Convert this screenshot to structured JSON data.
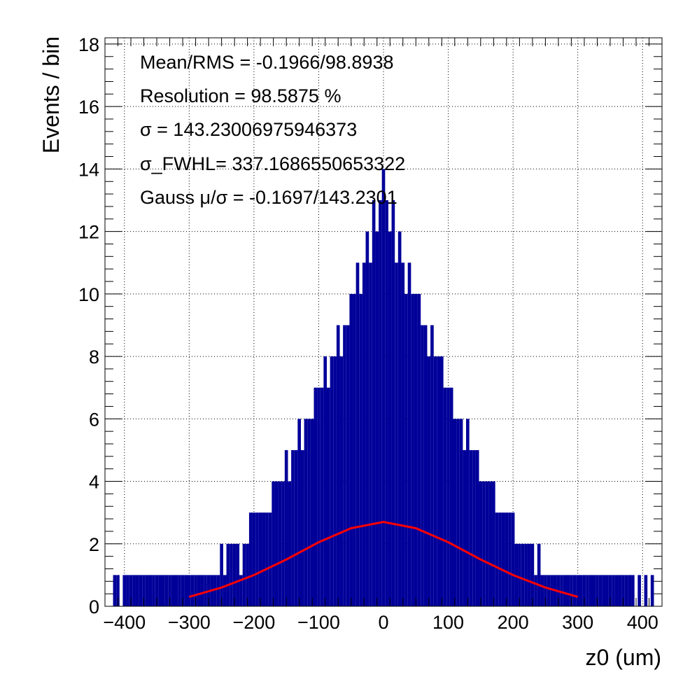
{
  "chart_data": {
    "type": "bar",
    "title": "",
    "xlabel": "z0 (um)",
    "ylabel": "Events / bin",
    "xlim": [
      -430,
      430
    ],
    "ylim": [
      0,
      18.2
    ],
    "x_ticks": [
      -400,
      -300,
      -200,
      -100,
      0,
      100,
      200,
      300,
      400
    ],
    "y_ticks": [
      0,
      2,
      4,
      6,
      8,
      10,
      12,
      14,
      16,
      18
    ],
    "grid": true,
    "legend": "none",
    "annotations": [
      "Mean/RMS = -0.1966/98.8938",
      "Resolution = 98.5875 %",
      "σ = 143.23006975946373",
      "σ_FWHL= 337.1686550653322",
      "Gauss  μ/σ = -0.1697/143.2301"
    ],
    "series": [
      {
        "kind": "histogram",
        "color": "#000099",
        "bin_width": 1,
        "bins": [
          [
            -415,
            1
          ],
          [
            -410,
            1
          ],
          [
            -400,
            1
          ],
          [
            -395,
            1
          ],
          [
            -390,
            1
          ],
          [
            -385,
            1
          ],
          [
            -380,
            1
          ],
          [
            -375,
            1
          ],
          [
            -370,
            1
          ],
          [
            -365,
            1
          ],
          [
            -360,
            1
          ],
          [
            -355,
            1
          ],
          [
            -350,
            1
          ],
          [
            -345,
            1
          ],
          [
            -340,
            1
          ],
          [
            -335,
            1
          ],
          [
            -330,
            1
          ],
          [
            -325,
            1
          ],
          [
            -320,
            1
          ],
          [
            -315,
            1
          ],
          [
            -310,
            1
          ],
          [
            -305,
            1
          ],
          [
            -300,
            1
          ],
          [
            -295,
            1
          ],
          [
            -290,
            1
          ],
          [
            -285,
            1
          ],
          [
            -280,
            1
          ],
          [
            -275,
            1
          ],
          [
            -270,
            1
          ],
          [
            -265,
            1
          ],
          [
            -260,
            1
          ],
          [
            -255,
            1
          ],
          [
            -250,
            2
          ],
          [
            -245,
            1
          ],
          [
            -240,
            2
          ],
          [
            -235,
            2
          ],
          [
            -230,
            2
          ],
          [
            -225,
            2
          ],
          [
            -220,
            1
          ],
          [
            -215,
            2
          ],
          [
            -210,
            2
          ],
          [
            -205,
            3
          ],
          [
            -200,
            3
          ],
          [
            -195,
            3
          ],
          [
            -190,
            3
          ],
          [
            -185,
            3
          ],
          [
            -180,
            3
          ],
          [
            -175,
            3
          ],
          [
            -170,
            4
          ],
          [
            -165,
            4
          ],
          [
            -160,
            4
          ],
          [
            -155,
            4
          ],
          [
            -150,
            5
          ],
          [
            -145,
            4
          ],
          [
            -140,
            5
          ],
          [
            -135,
            5
          ],
          [
            -130,
            6
          ],
          [
            -125,
            5
          ],
          [
            -120,
            6
          ],
          [
            -115,
            6
          ],
          [
            -110,
            6
          ],
          [
            -105,
            7
          ],
          [
            -100,
            7
          ],
          [
            -95,
            7
          ],
          [
            -90,
            8
          ],
          [
            -85,
            7
          ],
          [
            -80,
            8
          ],
          [
            -75,
            8
          ],
          [
            -70,
            9
          ],
          [
            -65,
            8
          ],
          [
            -60,
            9
          ],
          [
            -55,
            9
          ],
          [
            -50,
            10
          ],
          [
            -45,
            10
          ],
          [
            -40,
            11
          ],
          [
            -35,
            10
          ],
          [
            -30,
            11
          ],
          [
            -25,
            12
          ],
          [
            -20,
            11
          ],
          [
            -15,
            13
          ],
          [
            -10,
            12
          ],
          [
            -5,
            13
          ],
          [
            0,
            14
          ],
          [
            5,
            13
          ],
          [
            10,
            12
          ],
          [
            15,
            13
          ],
          [
            20,
            11
          ],
          [
            25,
            12
          ],
          [
            30,
            11
          ],
          [
            35,
            10
          ],
          [
            40,
            11
          ],
          [
            45,
            10
          ],
          [
            50,
            10
          ],
          [
            55,
            10
          ],
          [
            60,
            9
          ],
          [
            65,
            9
          ],
          [
            70,
            8
          ],
          [
            75,
            9
          ],
          [
            80,
            8
          ],
          [
            85,
            8
          ],
          [
            90,
            8
          ],
          [
            95,
            7
          ],
          [
            100,
            7
          ],
          [
            105,
            7
          ],
          [
            110,
            6
          ],
          [
            115,
            6
          ],
          [
            120,
            6
          ],
          [
            125,
            5
          ],
          [
            130,
            6
          ],
          [
            135,
            5
          ],
          [
            140,
            5
          ],
          [
            145,
            5
          ],
          [
            150,
            4
          ],
          [
            155,
            4
          ],
          [
            160,
            4
          ],
          [
            165,
            4
          ],
          [
            170,
            4
          ],
          [
            175,
            3
          ],
          [
            180,
            3
          ],
          [
            185,
            3
          ],
          [
            190,
            3
          ],
          [
            195,
            3
          ],
          [
            200,
            3
          ],
          [
            205,
            2
          ],
          [
            210,
            2
          ],
          [
            215,
            2
          ],
          [
            220,
            2
          ],
          [
            225,
            2
          ],
          [
            230,
            2
          ],
          [
            235,
            1
          ],
          [
            240,
            2
          ],
          [
            245,
            1
          ],
          [
            250,
            1
          ],
          [
            255,
            1
          ],
          [
            260,
            1
          ],
          [
            265,
            1
          ],
          [
            270,
            1
          ],
          [
            275,
            1
          ],
          [
            280,
            1
          ],
          [
            285,
            1
          ],
          [
            290,
            1
          ],
          [
            295,
            1
          ],
          [
            300,
            1
          ],
          [
            305,
            1
          ],
          [
            310,
            1
          ],
          [
            315,
            1
          ],
          [
            320,
            1
          ],
          [
            325,
            1
          ],
          [
            330,
            1
          ],
          [
            335,
            1
          ],
          [
            340,
            1
          ],
          [
            345,
            1
          ],
          [
            350,
            1
          ],
          [
            355,
            1
          ],
          [
            360,
            1
          ],
          [
            365,
            1
          ],
          [
            370,
            1
          ],
          [
            375,
            1
          ],
          [
            380,
            1
          ],
          [
            385,
            1
          ],
          [
            395,
            1
          ],
          [
            405,
            1
          ],
          [
            415,
            1
          ]
        ]
      },
      {
        "kind": "fit",
        "color": "#ff0000",
        "x": [
          -300,
          -250,
          -200,
          -150,
          -100,
          -50,
          0,
          50,
          100,
          150,
          200,
          250,
          300
        ],
        "y": [
          0.3,
          0.6,
          1.0,
          1.5,
          2.05,
          2.5,
          2.7,
          2.5,
          2.05,
          1.5,
          1.0,
          0.6,
          0.3
        ]
      }
    ]
  }
}
